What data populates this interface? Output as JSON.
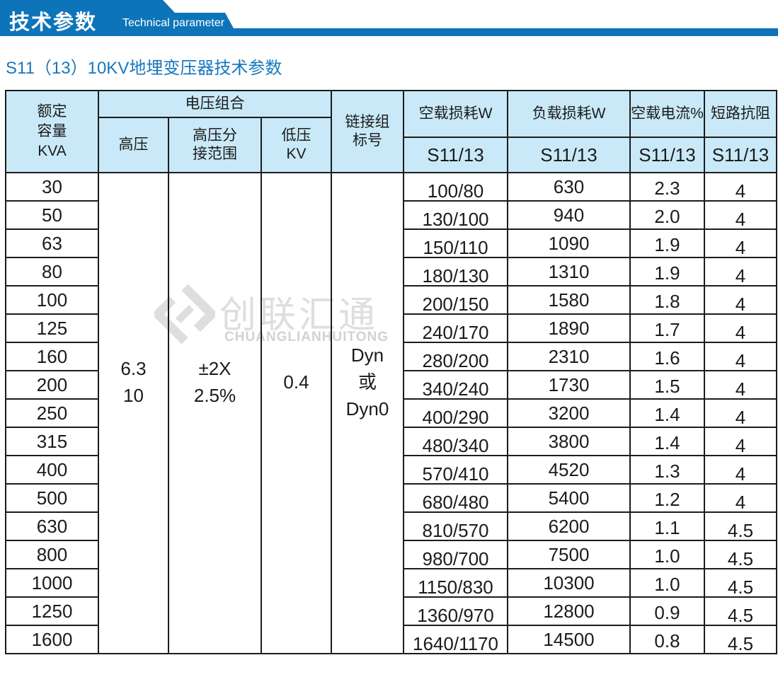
{
  "colors": {
    "banner_blue": "#0E74B9",
    "title_blue": "#1878BE",
    "header_bg": "#C9E9F8",
    "border_dark": "#1C1C1C",
    "watermark_gray": "#DEDEDE",
    "watermark_gray_dark": "#D2D2D2"
  },
  "banner": {
    "title_zh": "技术参数",
    "title_en": "Technical parameter"
  },
  "page_title": "S11（13）10KV地埋变压器技术参数",
  "watermark": {
    "zh": "创联汇通",
    "en": "CHUANGLIANHUITONG"
  },
  "table": {
    "header": {
      "capacity": "额定\n容量\nKVA",
      "voltage_group": "电压组合",
      "hv": "高压",
      "tap": "高压分\n接范围",
      "lv": "低压\nKV",
      "vector": "链接组\n标号",
      "noload_loss": "空载损耗W",
      "load_loss": "负载损耗W",
      "noload_current": "空载电流%",
      "impedance": "短路抗阻",
      "sub_model": "S11/13"
    },
    "merged": {
      "hv": "6.3\n10",
      "tap": "±2X\n2.5%",
      "lv": "0.4",
      "vector": "Dyn\n或\nDyn0"
    },
    "rows": [
      {
        "capacity": "30",
        "noload_loss": "100/80",
        "load_loss": "630",
        "noload_current": "2.3",
        "impedance": "4"
      },
      {
        "capacity": "50",
        "noload_loss": "130/100",
        "load_loss": "940",
        "noload_current": "2.0",
        "impedance": "4"
      },
      {
        "capacity": "63",
        "noload_loss": "150/110",
        "load_loss": "1090",
        "noload_current": "1.9",
        "impedance": "4"
      },
      {
        "capacity": "80",
        "noload_loss": "180/130",
        "load_loss": "1310",
        "noload_current": "1.9",
        "impedance": "4"
      },
      {
        "capacity": "100",
        "noload_loss": "200/150",
        "load_loss": "1580",
        "noload_current": "1.8",
        "impedance": "4"
      },
      {
        "capacity": "125",
        "noload_loss": "240/170",
        "load_loss": "1890",
        "noload_current": "1.7",
        "impedance": "4"
      },
      {
        "capacity": "160",
        "noload_loss": "280/200",
        "load_loss": "2310",
        "noload_current": "1.6",
        "impedance": "4"
      },
      {
        "capacity": "200",
        "noload_loss": "340/240",
        "load_loss": "1730",
        "noload_current": "1.5",
        "impedance": "4"
      },
      {
        "capacity": "250",
        "noload_loss": "400/290",
        "load_loss": "3200",
        "noload_current": "1.4",
        "impedance": "4"
      },
      {
        "capacity": "315",
        "noload_loss": "480/340",
        "load_loss": "3800",
        "noload_current": "1.4",
        "impedance": "4"
      },
      {
        "capacity": "400",
        "noload_loss": "570/410",
        "load_loss": "4520",
        "noload_current": "1.3",
        "impedance": "4"
      },
      {
        "capacity": "500",
        "noload_loss": "680/480",
        "load_loss": "5400",
        "noload_current": "1.2",
        "impedance": "4"
      },
      {
        "capacity": "630",
        "noload_loss": "810/570",
        "load_loss": "6200",
        "noload_current": "1.1",
        "impedance": "4.5"
      },
      {
        "capacity": "800",
        "noload_loss": "980/700",
        "load_loss": "7500",
        "noload_current": "1.0",
        "impedance": "4.5"
      },
      {
        "capacity": "1000",
        "noload_loss": "1150/830",
        "load_loss": "10300",
        "noload_current": "1.0",
        "impedance": "4.5"
      },
      {
        "capacity": "1250",
        "noload_loss": "1360/970",
        "load_loss": "12800",
        "noload_current": "0.9",
        "impedance": "4.5"
      },
      {
        "capacity": "1600",
        "noload_loss": "1640/1170",
        "load_loss": "14500",
        "noload_current": "0.8",
        "impedance": "4.5"
      }
    ]
  }
}
